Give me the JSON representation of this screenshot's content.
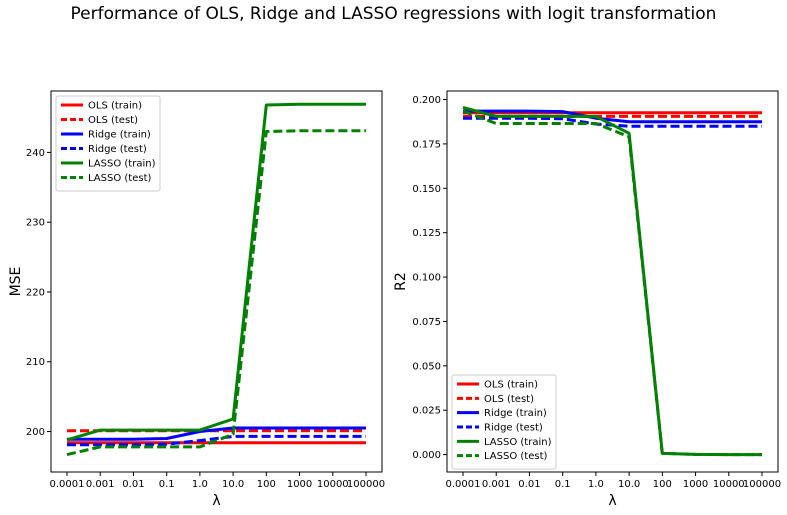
{
  "figure_title": "Performance of OLS, Ridge and LASSO regressions with logit transformation",
  "colors": {
    "ols": "#ff0000",
    "ridge": "#0000ff",
    "lasso": "#008000"
  },
  "chart_data": [
    {
      "type": "line",
      "title": "",
      "xlabel": "λ",
      "ylabel": "MSE",
      "categories": [
        "0.0001",
        "0.001",
        "0.01",
        "0.1",
        "1.0",
        "10.0",
        "100",
        "1000",
        "10000",
        "100000"
      ],
      "ylim": [
        194.2,
        248.8
      ],
      "yticks": [
        200,
        210,
        220,
        230,
        240
      ],
      "legend_position": "upper-left",
      "series": [
        {
          "name": "OLS (train)",
          "color": "#ff0000",
          "dashed": false,
          "values": [
            198.4,
            198.4,
            198.4,
            198.4,
            198.4,
            198.4,
            198.4,
            198.4,
            198.4,
            198.4
          ]
        },
        {
          "name": "OLS (test)",
          "color": "#ff0000",
          "dashed": true,
          "values": [
            200.1,
            200.1,
            200.1,
            200.1,
            200.1,
            200.1,
            200.1,
            200.1,
            200.1,
            200.1
          ]
        },
        {
          "name": "Ridge (train)",
          "color": "#0000ff",
          "dashed": false,
          "values": [
            198.9,
            198.9,
            198.9,
            199.0,
            200.0,
            200.5,
            200.5,
            200.5,
            200.5,
            200.5
          ]
        },
        {
          "name": "Ridge (test)",
          "color": "#0000ff",
          "dashed": true,
          "values": [
            198.1,
            198.1,
            198.1,
            198.2,
            198.7,
            199.3,
            199.3,
            199.3,
            199.3,
            199.3
          ]
        },
        {
          "name": "LASSO (train)",
          "color": "#008000",
          "dashed": false,
          "values": [
            198.8,
            200.2,
            200.2,
            200.2,
            200.2,
            201.8,
            246.8,
            246.9,
            246.9,
            246.9
          ]
        },
        {
          "name": "LASSO (test)",
          "color": "#008000",
          "dashed": true,
          "values": [
            196.7,
            197.8,
            197.8,
            197.8,
            197.8,
            199.6,
            243.0,
            243.1,
            243.1,
            243.1
          ]
        }
      ]
    },
    {
      "type": "line",
      "title": "",
      "xlabel": "λ",
      "ylabel": "R2",
      "categories": [
        "0.0001",
        "0.001",
        "0.01",
        "0.1",
        "1.0",
        "10.0",
        "100",
        "1000",
        "10000",
        "100000"
      ],
      "ylim": [
        -0.0098,
        0.2048
      ],
      "yticks": [
        0.0,
        0.025,
        0.05,
        0.075,
        0.1,
        0.125,
        0.15,
        0.175,
        0.2
      ],
      "legend_position": "lower-left",
      "series": [
        {
          "name": "OLS (train)",
          "color": "#ff0000",
          "dashed": false,
          "values": [
            0.1925,
            0.1925,
            0.1925,
            0.1925,
            0.1925,
            0.1925,
            0.1925,
            0.1925,
            0.1925,
            0.1925
          ]
        },
        {
          "name": "OLS (test)",
          "color": "#ff0000",
          "dashed": true,
          "values": [
            0.1905,
            0.1905,
            0.1905,
            0.1905,
            0.1905,
            0.1905,
            0.1905,
            0.1905,
            0.1905,
            0.1905
          ]
        },
        {
          "name": "Ridge (train)",
          "color": "#0000ff",
          "dashed": false,
          "values": [
            0.1935,
            0.1935,
            0.1935,
            0.1932,
            0.1895,
            0.1875,
            0.1875,
            0.1875,
            0.1875,
            0.1875
          ]
        },
        {
          "name": "Ridge (test)",
          "color": "#0000ff",
          "dashed": true,
          "values": [
            0.1895,
            0.1895,
            0.1895,
            0.1892,
            0.1862,
            0.185,
            0.185,
            0.185,
            0.185,
            0.185
          ]
        },
        {
          "name": "LASSO (train)",
          "color": "#008000",
          "dashed": false,
          "values": [
            0.1955,
            0.1905,
            0.1905,
            0.1905,
            0.1905,
            0.181,
            0.0007,
            0.0001,
            0.0,
            0.0
          ]
        },
        {
          "name": "LASSO (test)",
          "color": "#008000",
          "dashed": true,
          "values": [
            0.1935,
            0.1865,
            0.1865,
            0.1865,
            0.1865,
            0.179,
            0.0007,
            0.0001,
            0.0,
            0.0
          ]
        }
      ]
    }
  ]
}
